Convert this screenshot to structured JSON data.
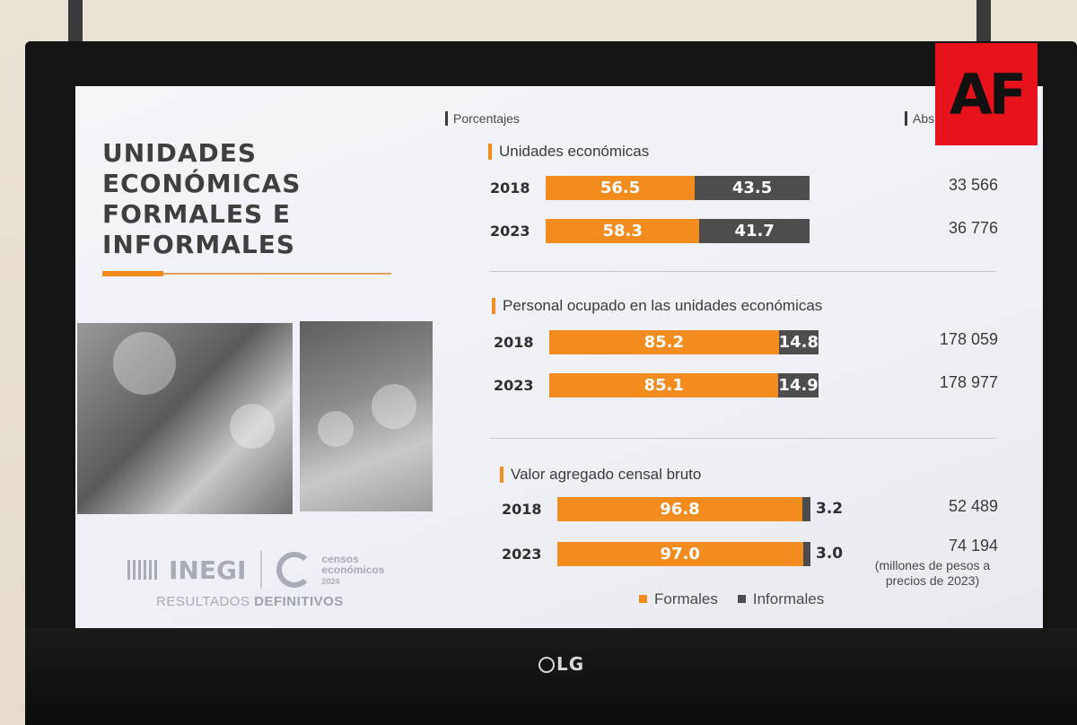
{
  "watermark": {
    "text": "AF",
    "color": "#e8121d"
  },
  "tv": {
    "brand": "LG"
  },
  "slide": {
    "title_lines": [
      "UNIDADES",
      "ECONÓMICAS",
      "FORMALES E",
      "INFORMALES"
    ],
    "header_left": "Porcentajes",
    "header_right": "Abs",
    "brand": {
      "inegi": "INEGI",
      "censos_line1": "censos",
      "censos_line2": "económicos",
      "censos_year": "2024",
      "resultados_a": "RESULTADOS",
      "resultados_b": "DEFINITIVOS"
    },
    "note": "(millones de pesos a precios de 2023)",
    "legend": [
      {
        "label": "Formales",
        "color": "#f28c1e"
      },
      {
        "label": "Informales",
        "color": "#4d4d4d"
      }
    ]
  },
  "chart_data": [
    {
      "type": "bar",
      "stacked": true,
      "orientation": "horizontal",
      "title": "Unidades económicas",
      "categories": [
        "2018",
        "2023"
      ],
      "series": [
        {
          "name": "Formales",
          "values": [
            56.5,
            58.3
          ]
        },
        {
          "name": "Informales",
          "values": [
            43.5,
            41.7
          ]
        }
      ],
      "absolute": [
        "33 566",
        "36 776"
      ]
    },
    {
      "type": "bar",
      "stacked": true,
      "orientation": "horizontal",
      "title": "Personal ocupado en las unidades económicas",
      "categories": [
        "2018",
        "2023"
      ],
      "series": [
        {
          "name": "Formales",
          "values": [
            85.2,
            85.1
          ]
        },
        {
          "name": "Informales",
          "values": [
            14.8,
            14.9
          ]
        }
      ],
      "absolute": [
        "178 059",
        "178 977"
      ]
    },
    {
      "type": "bar",
      "stacked": true,
      "orientation": "horizontal",
      "title": "Valor agregado censal bruto",
      "categories": [
        "2018",
        "2023"
      ],
      "series": [
        {
          "name": "Formales",
          "values": [
            96.8,
            97.0
          ]
        },
        {
          "name": "Informales",
          "values": [
            3.2,
            3.0
          ]
        }
      ],
      "absolute": [
        "52 489",
        "74 194"
      ]
    }
  ]
}
